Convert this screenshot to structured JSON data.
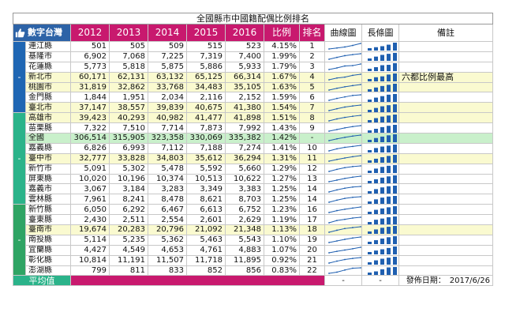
{
  "title": "全國縣市中國籍配偶比例排名",
  "brand": "數字台灣",
  "headers": {
    "years": [
      "2012",
      "2013",
      "2014",
      "2015",
      "2016"
    ],
    "ratio": "比例",
    "rank": "排名",
    "curve": "曲線圖",
    "bar": "長條圖",
    "note": "備註"
  },
  "group_marks": [
    "-",
    "-",
    "-"
  ],
  "rows": [
    {
      "city": "連江縣",
      "v": [
        "501",
        "505",
        "509",
        "515",
        "523"
      ],
      "ratio": "4.15%",
      "rank": "1",
      "hl": "",
      "note": ""
    },
    {
      "city": "基隆市",
      "v": [
        "6,902",
        "7,068",
        "7,225",
        "7,319",
        "7,400"
      ],
      "ratio": "1.99%",
      "rank": "2",
      "hl": "",
      "note": ""
    },
    {
      "city": "花蓮縣",
      "v": [
        "5,773",
        "5,818",
        "5,875",
        "5,886",
        "5,933"
      ],
      "ratio": "1.79%",
      "rank": "3",
      "hl": "",
      "note": ""
    },
    {
      "city": "新北市",
      "v": [
        "60,171",
        "62,131",
        "63,132",
        "65,125",
        "66,314"
      ],
      "ratio": "1.67%",
      "rank": "4",
      "hl": "y",
      "note": "六都比例最高"
    },
    {
      "city": "桃園市",
      "v": [
        "31,819",
        "32,862",
        "33,768",
        "34,483",
        "35,105"
      ],
      "ratio": "1.63%",
      "rank": "5",
      "hl": "y",
      "note": ""
    },
    {
      "city": "金門縣",
      "v": [
        "1,844",
        "1,951",
        "2,034",
        "2,116",
        "2,152"
      ],
      "ratio": "1.59%",
      "rank": "6",
      "hl": "",
      "note": ""
    },
    {
      "city": "臺北市",
      "v": [
        "37,147",
        "38,557",
        "39,839",
        "40,675",
        "41,380"
      ],
      "ratio": "1.54%",
      "rank": "7",
      "hl": "y",
      "note": ""
    },
    {
      "city": "高雄市",
      "v": [
        "39,423",
        "40,293",
        "40,982",
        "41,477",
        "41,898"
      ],
      "ratio": "1.51%",
      "rank": "8",
      "hl": "y",
      "note": ""
    },
    {
      "city": "苗栗縣",
      "v": [
        "7,322",
        "7,510",
        "7,714",
        "7,873",
        "7,992"
      ],
      "ratio": "1.43%",
      "rank": "9",
      "hl": "",
      "note": ""
    },
    {
      "city": "全國",
      "v": [
        "306,514",
        "315,905",
        "323,358",
        "330,069",
        "335,382"
      ],
      "ratio": "1.42%",
      "rank": "-",
      "hl": "g",
      "note": ""
    },
    {
      "city": "嘉義縣",
      "v": [
        "6,826",
        "6,993",
        "7,112",
        "7,188",
        "7,274"
      ],
      "ratio": "1.41%",
      "rank": "10",
      "hl": "",
      "note": ""
    },
    {
      "city": "臺中市",
      "v": [
        "32,777",
        "33,828",
        "34,803",
        "35,612",
        "36,294"
      ],
      "ratio": "1.31%",
      "rank": "11",
      "hl": "y",
      "note": ""
    },
    {
      "city": "新竹市",
      "v": [
        "5,091",
        "5,302",
        "5,478",
        "5,592",
        "5,660"
      ],
      "ratio": "1.29%",
      "rank": "12",
      "hl": "",
      "note": ""
    },
    {
      "city": "屏東縣",
      "v": [
        "10,020",
        "10,196",
        "10,374",
        "10,513",
        "10,622"
      ],
      "ratio": "1.27%",
      "rank": "13",
      "hl": "",
      "note": ""
    },
    {
      "city": "嘉義市",
      "v": [
        "3,067",
        "3,184",
        "3,283",
        "3,349",
        "3,383"
      ],
      "ratio": "1.25%",
      "rank": "14",
      "hl": "",
      "note": ""
    },
    {
      "city": "雲林縣",
      "v": [
        "7,961",
        "8,241",
        "8,478",
        "8,621",
        "8,703"
      ],
      "ratio": "1.25%",
      "rank": "14",
      "hl": "",
      "note": ""
    },
    {
      "city": "新竹縣",
      "v": [
        "6,050",
        "6,292",
        "6,467",
        "6,613",
        "6,752"
      ],
      "ratio": "1.23%",
      "rank": "16",
      "hl": "",
      "note": ""
    },
    {
      "city": "臺東縣",
      "v": [
        "2,430",
        "2,511",
        "2,554",
        "2,601",
        "2,629"
      ],
      "ratio": "1.19%",
      "rank": "17",
      "hl": "",
      "note": ""
    },
    {
      "city": "臺南市",
      "v": [
        "19,674",
        "20,283",
        "20,796",
        "21,092",
        "21,348"
      ],
      "ratio": "1.13%",
      "rank": "18",
      "hl": "y",
      "note": ""
    },
    {
      "city": "南投縣",
      "v": [
        "5,114",
        "5,235",
        "5,362",
        "5,463",
        "5,543"
      ],
      "ratio": "1.10%",
      "rank": "19",
      "hl": "",
      "note": ""
    },
    {
      "city": "宜蘭縣",
      "v": [
        "4,427",
        "4,549",
        "4,653",
        "4,761",
        "4,883"
      ],
      "ratio": "1.07%",
      "rank": "20",
      "hl": "",
      "note": ""
    },
    {
      "city": "彰化縣",
      "v": [
        "10,814",
        "11,191",
        "11,507",
        "11,718",
        "11,895"
      ],
      "ratio": "0.92%",
      "rank": "21",
      "hl": "",
      "note": ""
    },
    {
      "city": "澎湖縣",
      "v": [
        "799",
        "811",
        "833",
        "852",
        "856"
      ],
      "ratio": "0.83%",
      "rank": "22",
      "hl": "",
      "note": ""
    }
  ],
  "footer": {
    "label": "平均值",
    "ratio_mark": "-",
    "curve_mark": "-",
    "bar_mark": "-",
    "date": "發佈日期：　2017/6/26"
  },
  "colors": {
    "brand": "#2d63a7",
    "magenta": "#c8196e",
    "group1": "#1f66b3",
    "group2": "#2bb38a",
    "group3": "#2fa464",
    "highlight_yellow": "#fafad0",
    "highlight_green": "#c9f0cb",
    "spark": "#1f5fb0"
  }
}
